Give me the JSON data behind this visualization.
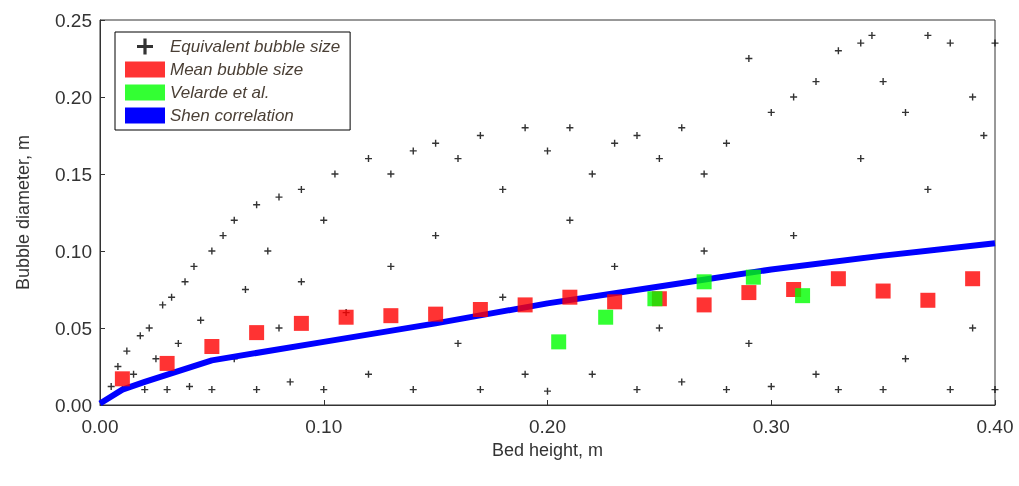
{
  "chart_data": {
    "type": "scatter",
    "xlabel": "Bed height, m",
    "ylabel": "Bubble diameter, m",
    "xlim": [
      0,
      0.4
    ],
    "ylim": [
      0,
      0.25
    ],
    "xticks": [
      {
        "value": 0,
        "label": "0.00"
      },
      {
        "value": 0.1,
        "label": "0.10"
      },
      {
        "value": 0.2,
        "label": "0.20"
      },
      {
        "value": 0.3,
        "label": "0.30"
      },
      {
        "value": 0.4,
        "label": "0.40"
      }
    ],
    "yticks": [
      {
        "value": 0,
        "label": "0.00"
      },
      {
        "value": 0.05,
        "label": "0.05"
      },
      {
        "value": 0.1,
        "label": "0.10"
      },
      {
        "value": 0.15,
        "label": "0.15"
      },
      {
        "value": 0.2,
        "label": "0.20"
      },
      {
        "value": 0.25,
        "label": "0.25"
      }
    ],
    "grid": false,
    "legend": "top left",
    "series": [
      {
        "name": "Equivalent bubble size",
        "type": "scatter",
        "marker": "cross",
        "color": "#000000",
        "x": [
          0.005,
          0.008,
          0.01,
          0.012,
          0.015,
          0.018,
          0.02,
          0.022,
          0.025,
          0.028,
          0.03,
          0.032,
          0.035,
          0.038,
          0.04,
          0.042,
          0.045,
          0.05,
          0.05,
          0.055,
          0.06,
          0.06,
          0.065,
          0.07,
          0.07,
          0.075,
          0.08,
          0.08,
          0.085,
          0.09,
          0.09,
          0.1,
          0.1,
          0.105,
          0.11,
          0.12,
          0.12,
          0.13,
          0.13,
          0.14,
          0.14,
          0.15,
          0.15,
          0.16,
          0.16,
          0.17,
          0.17,
          0.18,
          0.18,
          0.19,
          0.19,
          0.2,
          0.2,
          0.21,
          0.21,
          0.22,
          0.22,
          0.23,
          0.23,
          0.24,
          0.24,
          0.25,
          0.25,
          0.26,
          0.26,
          0.27,
          0.27,
          0.28,
          0.28,
          0.29,
          0.29,
          0.3,
          0.3,
          0.31,
          0.31,
          0.32,
          0.32,
          0.33,
          0.33,
          0.34,
          0.34,
          0.345,
          0.35,
          0.35,
          0.36,
          0.36,
          0.37,
          0.37,
          0.38,
          0.38,
          0.39,
          0.39,
          0.395,
          0.4,
          0.4
        ],
        "values": [
          0.012,
          0.025,
          0.01,
          0.035,
          0.02,
          0.045,
          0.01,
          0.05,
          0.03,
          0.065,
          0.01,
          0.07,
          0.04,
          0.08,
          0.012,
          0.09,
          0.055,
          0.1,
          0.01,
          0.11,
          0.03,
          0.12,
          0.075,
          0.13,
          0.01,
          0.1,
          0.05,
          0.135,
          0.015,
          0.14,
          0.08,
          0.12,
          0.01,
          0.15,
          0.06,
          0.16,
          0.02,
          0.15,
          0.09,
          0.165,
          0.01,
          0.17,
          0.11,
          0.16,
          0.04,
          0.175,
          0.01,
          0.14,
          0.07,
          0.18,
          0.02,
          0.165,
          0.009,
          0.18,
          0.12,
          0.15,
          0.02,
          0.17,
          0.09,
          0.175,
          0.01,
          0.16,
          0.05,
          0.18,
          0.015,
          0.15,
          0.1,
          0.17,
          0.01,
          0.225,
          0.04,
          0.19,
          0.012,
          0.2,
          0.11,
          0.21,
          0.02,
          0.23,
          0.01,
          0.235,
          0.16,
          0.24,
          0.21,
          0.01,
          0.19,
          0.03,
          0.24,
          0.14,
          0.235,
          0.01,
          0.2,
          0.05,
          0.175,
          0.235,
          0.01
        ]
      },
      {
        "name": "Mean bubble size",
        "type": "scatter",
        "marker": "square",
        "color": "#ff0000",
        "x": [
          0.01,
          0.03,
          0.05,
          0.07,
          0.09,
          0.11,
          0.13,
          0.15,
          0.17,
          0.19,
          0.21,
          0.23,
          0.25,
          0.27,
          0.29,
          0.31,
          0.33,
          0.35,
          0.37,
          0.39
        ],
        "values": [
          0.017,
          0.027,
          0.038,
          0.047,
          0.053,
          0.057,
          0.058,
          0.059,
          0.062,
          0.065,
          0.07,
          0.067,
          0.069,
          0.065,
          0.073,
          0.075,
          0.082,
          0.074,
          0.068,
          0.082
        ]
      },
      {
        "name": "Velarde et al.",
        "type": "scatter",
        "marker": "square",
        "color": "#00ff00",
        "x": [
          0.205,
          0.226,
          0.248,
          0.27,
          0.292,
          0.314
        ],
        "values": [
          0.041,
          0.057,
          0.069,
          0.08,
          0.083,
          0.071
        ]
      },
      {
        "name": "Shen correlation",
        "type": "line",
        "marker": "none",
        "color": "#0000ff",
        "x": [
          0,
          0.01,
          0.02,
          0.05,
          0.1,
          0.15,
          0.2,
          0.25,
          0.3,
          0.35,
          0.4
        ],
        "values": [
          0.001,
          0.01,
          0.015,
          0.029,
          0.041,
          0.053,
          0.066,
          0.077,
          0.088,
          0.097,
          0.105
        ]
      }
    ]
  }
}
